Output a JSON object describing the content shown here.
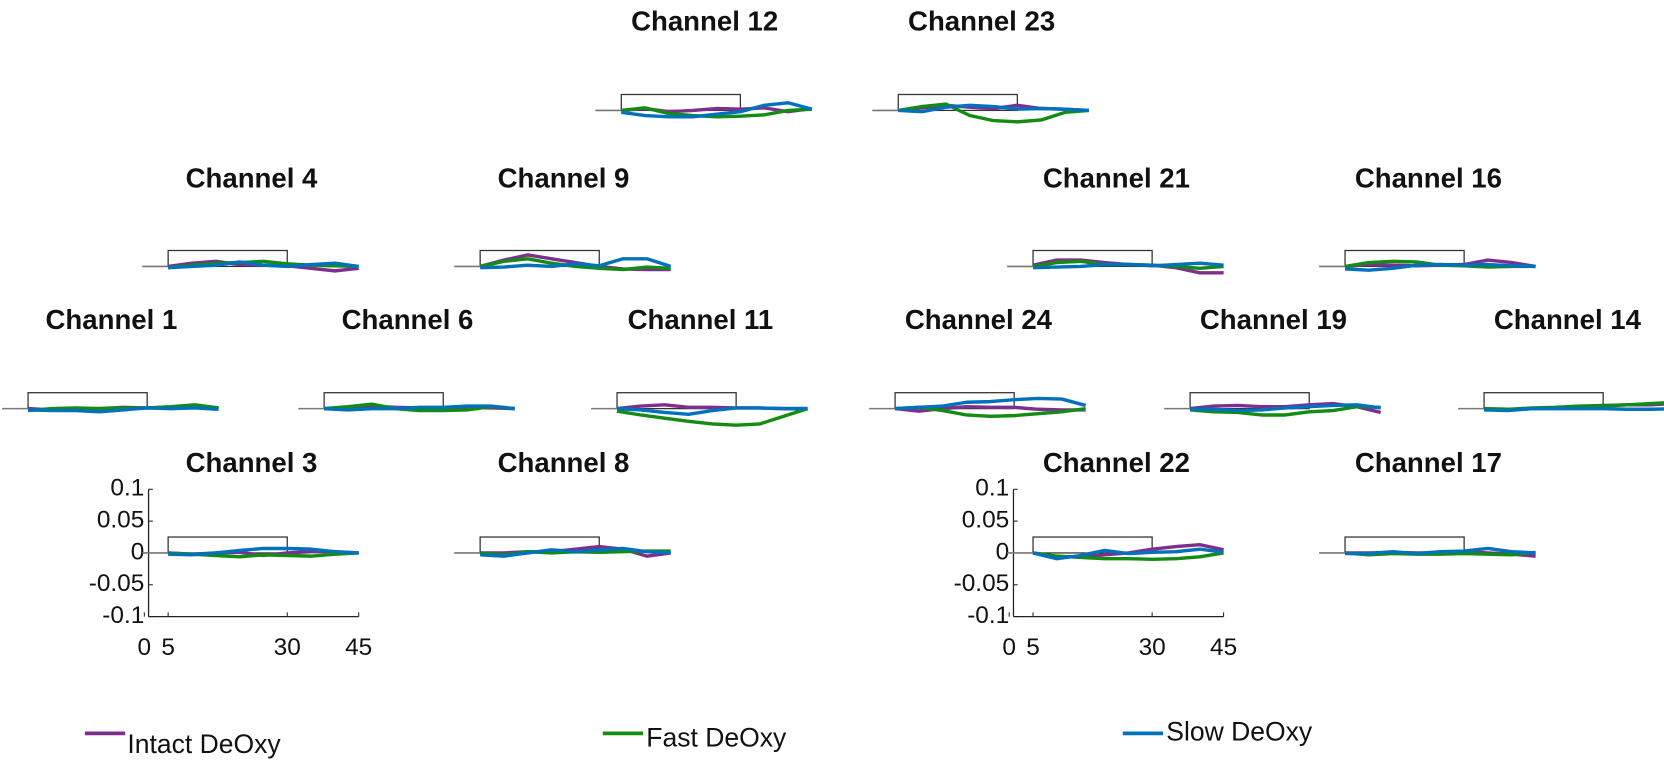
{
  "chart_data": [
    {
      "type": "line",
      "title": "Channel 12",
      "x": [
        5,
        10,
        15,
        20,
        25,
        30,
        35,
        40,
        45
      ],
      "xlim": [
        0,
        45
      ],
      "ylim": [
        -0.1,
        0.1
      ],
      "series": [
        {
          "values": [
            0,
            0.003,
            -0.002,
            0,
            0.003,
            0.002,
            0.004,
            -0.002,
            0.003
          ]
        },
        {
          "values": [
            0,
            0.004,
            -0.005,
            -0.008,
            -0.01,
            -0.009,
            -0.007,
            0,
            0.002
          ]
        },
        {
          "values": [
            -0.003,
            -0.008,
            -0.01,
            -0.01,
            -0.006,
            -0.002,
            0.008,
            0.012,
            0.002
          ]
        }
      ]
    },
    {
      "type": "line",
      "title": "Channel 23",
      "x": [
        5,
        10,
        15,
        20,
        25,
        30,
        35,
        40,
        45
      ],
      "xlim": [
        0,
        45
      ],
      "ylim": [
        -0.1,
        0.1
      ],
      "series": [
        {
          "values": [
            0,
            0.004,
            0.008,
            0.005,
            0.003,
            0.008,
            0.003,
            0.002,
            0
          ]
        },
        {
          "values": [
            0,
            0.006,
            0.01,
            -0.008,
            -0.016,
            -0.018,
            -0.015,
            -0.003,
            0
          ]
        },
        {
          "values": [
            0,
            -0.002,
            0.005,
            0.008,
            0.006,
            0.002,
            0.003,
            0.002,
            0
          ]
        }
      ]
    },
    {
      "type": "line",
      "title": "Channel 4",
      "x": [
        5,
        10,
        15,
        20,
        25,
        30,
        35,
        40,
        45
      ],
      "xlim": [
        0,
        45
      ],
      "ylim": [
        -0.1,
        0.1
      ],
      "series": [
        {
          "values": [
            0,
            0.005,
            0.008,
            0.003,
            0.002,
            0.001,
            -0.003,
            -0.007,
            -0.003
          ]
        },
        {
          "values": [
            -0.002,
            0.002,
            0.005,
            0.006,
            0.008,
            0.004,
            0.002,
            0.001,
            0
          ]
        },
        {
          "values": [
            -0.002,
            0,
            0.002,
            0.007,
            0.002,
            0,
            0.003,
            0.005,
            0
          ]
        }
      ]
    },
    {
      "type": "line",
      "title": "Channel 9",
      "x": [
        5,
        10,
        15,
        20,
        25,
        30,
        35,
        40,
        45
      ],
      "xlim": [
        0,
        45
      ],
      "ylim": [
        -0.1,
        0.1
      ],
      "series": [
        {
          "values": [
            0,
            0.01,
            0.018,
            0.012,
            0.006,
            0,
            -0.004,
            -0.005,
            -0.005
          ]
        },
        {
          "values": [
            0,
            0.008,
            0.012,
            0.005,
            0,
            -0.003,
            -0.005,
            -0.001,
            -0.003
          ]
        },
        {
          "values": [
            -0.002,
            -0.001,
            0.002,
            0,
            0.004,
            0.001,
            0.012,
            0.012,
            0
          ]
        }
      ]
    },
    {
      "type": "line",
      "title": "Channel 21",
      "x": [
        5,
        10,
        15,
        20,
        25,
        30,
        35,
        40,
        45
      ],
      "xlim": [
        0,
        45
      ],
      "ylim": [
        -0.1,
        0.1
      ],
      "series": [
        {
          "values": [
            0.002,
            0.01,
            0.01,
            0.006,
            0.003,
            0.002,
            -0.002,
            -0.01,
            -0.01
          ]
        },
        {
          "values": [
            0,
            0.006,
            0.008,
            0.003,
            0.003,
            0.002,
            0,
            -0.003,
            0
          ]
        },
        {
          "values": [
            -0.002,
            -0.001,
            0,
            0.003,
            0.003,
            0.001,
            0.003,
            0.005,
            0.002
          ]
        }
      ]
    },
    {
      "type": "line",
      "title": "Channel 16",
      "x": [
        5,
        10,
        15,
        20,
        25,
        30,
        35,
        40,
        45
      ],
      "xlim": [
        0,
        45
      ],
      "ylim": [
        -0.1,
        0.1
      ],
      "series": [
        {
          "values": [
            0,
            0.003,
            0.002,
            0.001,
            0.002,
            0.003,
            0.01,
            0.006,
            0
          ]
        },
        {
          "values": [
            0,
            0.006,
            0.008,
            0.007,
            0.002,
            0.001,
            -0.001,
            0,
            0
          ]
        },
        {
          "values": [
            -0.004,
            -0.006,
            -0.003,
            0.002,
            0.003,
            0.002,
            0.003,
            0.001,
            0
          ]
        }
      ]
    },
    {
      "type": "line",
      "title": "Channel 1",
      "x": [
        5,
        10,
        15,
        20,
        25,
        30,
        35,
        40,
        45
      ],
      "xlim": [
        0,
        45
      ],
      "ylim": [
        -0.1,
        0.1
      ],
      "series": [
        {
          "values": [
            0,
            -0.002,
            0,
            0,
            0.002,
            0.001,
            0.002,
            0.004,
            0
          ]
        },
        {
          "values": [
            -0.003,
            0,
            0.001,
            0,
            0.001,
            0.001,
            0.003,
            0.006,
            0.001
          ]
        },
        {
          "values": [
            -0.002,
            -0.003,
            -0.003,
            -0.005,
            -0.002,
            0.001,
            0,
            0.001,
            -0.001
          ]
        }
      ]
    },
    {
      "type": "line",
      "title": "Channel 6",
      "x": [
        5,
        10,
        15,
        20,
        25,
        30,
        35,
        40,
        45
      ],
      "xlim": [
        0,
        45
      ],
      "ylim": [
        -0.1,
        0.1
      ],
      "series": [
        {
          "values": [
            0,
            0,
            0.004,
            0.002,
            0.001,
            0.001,
            0.002,
            0.001,
            0
          ]
        },
        {
          "values": [
            0,
            0.003,
            0.007,
            0,
            -0.003,
            -0.003,
            -0.002,
            0.003,
            0
          ]
        },
        {
          "values": [
            0,
            -0.002,
            0,
            0,
            0.002,
            0.002,
            0.004,
            0.004,
            0
          ]
        }
      ]
    },
    {
      "type": "line",
      "title": "Channel 11",
      "x": [
        5,
        10,
        15,
        20,
        25,
        30,
        35,
        40,
        45
      ],
      "xlim": [
        0,
        45
      ],
      "ylim": [
        -0.1,
        0.1
      ],
      "series": [
        {
          "values": [
            0,
            0.004,
            0.006,
            0.002,
            0.002,
            0.001,
            0.001,
            0,
            0
          ]
        },
        {
          "values": [
            -0.004,
            -0.01,
            -0.015,
            -0.02,
            -0.024,
            -0.026,
            -0.024,
            -0.012,
            0
          ]
        },
        {
          "values": [
            0,
            -0.002,
            -0.006,
            -0.009,
            -0.003,
            0.001,
            0.001,
            0,
            0
          ]
        }
      ]
    },
    {
      "type": "line",
      "title": "Channel 24",
      "x": [
        5,
        10,
        15,
        20,
        25,
        30,
        35,
        40,
        45
      ],
      "xlim": [
        0,
        45
      ],
      "ylim": [
        -0.1,
        0.1
      ],
      "series": [
        {
          "values": [
            0,
            -0.004,
            0,
            0.003,
            0.002,
            0.002,
            -0.001,
            -0.002,
            -0.002
          ]
        },
        {
          "values": [
            0,
            0.002,
            -0.003,
            -0.01,
            -0.012,
            -0.011,
            -0.008,
            -0.005,
            0
          ]
        },
        {
          "values": [
            0,
            0.002,
            0.004,
            0.01,
            0.011,
            0.014,
            0.016,
            0.015,
            0.005
          ]
        }
      ]
    },
    {
      "type": "line",
      "title": "Channel 19",
      "x": [
        5,
        10,
        15,
        20,
        25,
        30,
        35,
        40,
        45
      ],
      "xlim": [
        0,
        45
      ],
      "ylim": [
        -0.1,
        0.1
      ],
      "series": [
        {
          "values": [
            0,
            0.004,
            0.005,
            0.003,
            0.003,
            0.006,
            0.008,
            0.003,
            -0.006
          ]
        },
        {
          "values": [
            -0.002,
            -0.005,
            -0.006,
            -0.01,
            -0.01,
            -0.005,
            -0.003,
            0.003,
            0.002
          ]
        },
        {
          "values": [
            -0.001,
            -0.001,
            -0.003,
            -0.002,
            0.001,
            0.003,
            0.005,
            0.006,
            0.001
          ]
        }
      ]
    },
    {
      "type": "line",
      "title": "Channel 14",
      "x": [
        5,
        10,
        15,
        20,
        25,
        30,
        35,
        40,
        45
      ],
      "xlim": [
        0,
        45
      ],
      "ylim": [
        -0.1,
        0.1
      ],
      "series": [
        {
          "values": [
            0,
            -0.002,
            0,
            0.001,
            0.002,
            0.004,
            0.006,
            0.006,
            0.008
          ]
        },
        {
          "values": [
            0,
            -0.001,
            0.001,
            0.002,
            0.004,
            0.005,
            0.006,
            0.008,
            0.01
          ]
        },
        {
          "values": [
            -0.002,
            -0.003,
            0,
            0,
            0,
            0,
            -0.001,
            -0.001,
            0
          ]
        }
      ]
    },
    {
      "type": "line",
      "title": "Channel 3",
      "x": [
        5,
        10,
        15,
        20,
        25,
        30,
        35,
        40,
        45
      ],
      "xlim": [
        0,
        45
      ],
      "ylim": [
        -0.1,
        0.1
      ],
      "xticks": [
        0,
        5,
        30,
        45
      ],
      "yticks": [
        0.1,
        0.05,
        0,
        -0.05,
        -0.1
      ],
      "series": [
        {
          "values": [
            0,
            -0.002,
            0,
            0.001,
            -0.004,
            0,
            0.002,
            0.002,
            0
          ]
        },
        {
          "values": [
            0,
            -0.002,
            -0.004,
            -0.006,
            -0.003,
            -0.004,
            -0.005,
            -0.002,
            0
          ]
        },
        {
          "values": [
            -0.002,
            -0.003,
            0,
            0.004,
            0.007,
            0.007,
            0.006,
            0.002,
            0
          ]
        }
      ]
    },
    {
      "type": "line",
      "title": "Channel 8",
      "x": [
        5,
        10,
        15,
        20,
        25,
        30,
        35,
        40,
        45
      ],
      "xlim": [
        0,
        45
      ],
      "ylim": [
        -0.1,
        0.1
      ],
      "series": [
        {
          "values": [
            0,
            0,
            0.002,
            0.002,
            0.006,
            0.01,
            0.006,
            -0.005,
            0
          ]
        },
        {
          "values": [
            0,
            -0.003,
            0.002,
            0,
            0.002,
            0.001,
            0.002,
            0.003,
            0.003
          ]
        },
        {
          "values": [
            -0.003,
            -0.005,
            0,
            0.005,
            0.002,
            0.005,
            0.007,
            0.002,
            0
          ]
        }
      ]
    },
    {
      "type": "line",
      "title": "Channel 22",
      "x": [
        5,
        10,
        15,
        20,
        25,
        30,
        35,
        40,
        45
      ],
      "xlim": [
        0,
        45
      ],
      "ylim": [
        -0.1,
        0.1
      ],
      "xticks": [
        0,
        5,
        30,
        45
      ],
      "yticks": [
        0.1,
        0.05,
        0,
        -0.05,
        -0.1
      ],
      "series": [
        {
          "values": [
            0,
            -0.006,
            -0.006,
            -0.003,
            0,
            0.006,
            0.01,
            0.013,
            0.005
          ]
        },
        {
          "values": [
            0,
            -0.005,
            -0.007,
            -0.009,
            -0.009,
            -0.01,
            -0.009,
            -0.006,
            0
          ]
        },
        {
          "values": [
            0,
            -0.009,
            -0.004,
            0.004,
            -0.001,
            0.001,
            0.002,
            0.006,
            0.001
          ]
        }
      ]
    },
    {
      "type": "line",
      "title": "Channel 17",
      "x": [
        5,
        10,
        15,
        20,
        25,
        30,
        35,
        40,
        45
      ],
      "xlim": [
        0,
        45
      ],
      "ylim": [
        -0.1,
        0.1
      ],
      "series": [
        {
          "values": [
            0,
            0,
            0.001,
            0,
            0,
            0.002,
            0,
            -0.002,
            -0.005
          ]
        },
        {
          "values": [
            0,
            -0.003,
            -0.001,
            -0.002,
            -0.002,
            -0.001,
            -0.002,
            -0.003,
            0.001
          ]
        },
        {
          "values": [
            -0.001,
            -0.001,
            0.002,
            -0.001,
            0.002,
            0.003,
            0.007,
            0.002,
            0
          ]
        }
      ]
    }
  ],
  "stimulus_box": {
    "x": [
      5,
      30
    ],
    "y": [
      0,
      0.025
    ]
  },
  "legend": [
    {
      "name": "Intact DeOxy",
      "color": "#7e2f8e"
    },
    {
      "name": "Fast DeOxy",
      "color": "#138c13"
    },
    {
      "name": "Slow DeOxy",
      "color": "#0072bd"
    }
  ]
}
